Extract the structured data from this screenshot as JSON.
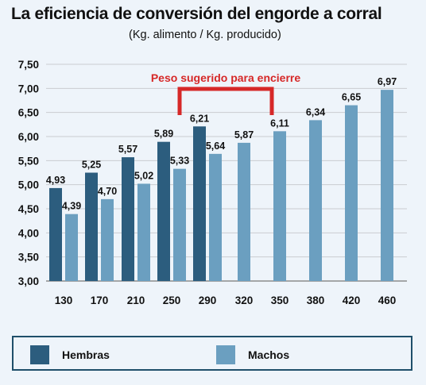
{
  "chart_data": {
    "type": "bar",
    "title": "La eficiencia de conversión del engorde a corral",
    "subtitle": "(Kg. alimento / Kg. producido)",
    "categories": [
      "130",
      "170",
      "210",
      "250",
      "290",
      "320",
      "350",
      "380",
      "420",
      "460"
    ],
    "series": [
      {
        "name": "Hembras",
        "color": "#2c5d7e",
        "values": [
          4.93,
          5.25,
          5.57,
          5.89,
          6.21,
          null,
          null,
          null,
          null,
          null
        ]
      },
      {
        "name": "Machos",
        "color": "#6b9fc0",
        "values": [
          4.39,
          4.7,
          5.02,
          5.33,
          5.64,
          5.87,
          6.11,
          6.34,
          6.65,
          6.97
        ]
      }
    ],
    "value_labels": {
      "Hembras": [
        "4,93",
        "5,25",
        "5,57",
        "5,89",
        "6,21",
        null,
        null,
        null,
        null,
        null
      ],
      "Machos": [
        "4,39",
        "4,70",
        "5,02",
        "5,33",
        "5,64",
        "5,87",
        "6,11",
        "6,34",
        "6,65",
        "6,97"
      ]
    },
    "ylim": [
      3.0,
      7.5
    ],
    "y_ticks": [
      "3,00",
      "3,50",
      "4,00",
      "4,50",
      "5,00",
      "5,50",
      "6,00",
      "6,50",
      "7,00",
      "7,50"
    ],
    "grid": true,
    "legend_position": "bottom",
    "annotation": {
      "text": "Peso sugerido para encierre",
      "color": "#d62828",
      "from_category": "250",
      "to_category": "320"
    }
  }
}
